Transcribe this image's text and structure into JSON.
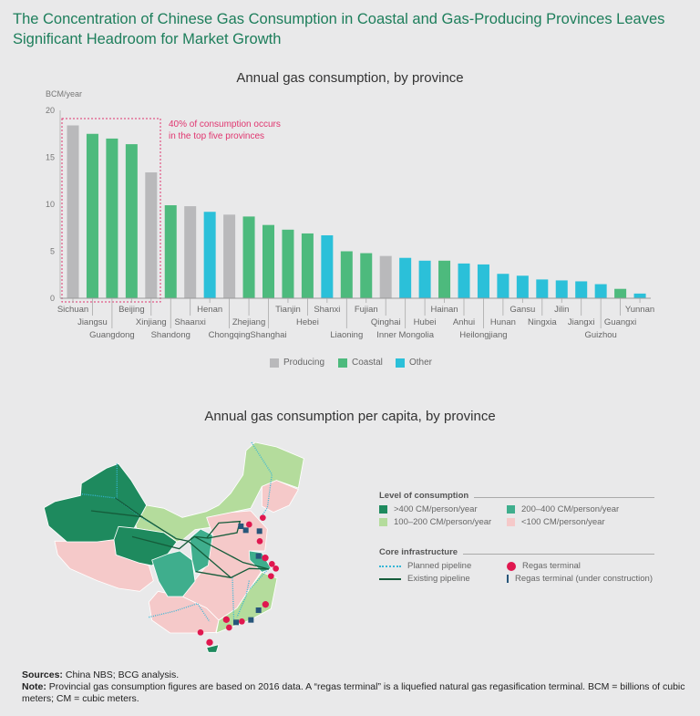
{
  "title": "The Concentration of Chinese Gas Consumption in Coastal and Gas-Producing Provinces Leaves Significant Headroom for Market Growth",
  "colors": {
    "Producing": "#b9b9bb",
    "Coastal": "#4dba7d",
    "Other": "#2bc0d9",
    "accent": "#e0356f",
    "title": "#1d7e5b"
  },
  "chart_data": {
    "type": "bar",
    "title": "Annual gas consumption, by province",
    "ylabel": "BCM/year",
    "xlabel": "",
    "ylim": [
      0,
      20
    ],
    "yticks": [
      "0",
      "5",
      "10",
      "15",
      "20"
    ],
    "grid": false,
    "legend": {
      "placement": "bottom-center",
      "entries": [
        "Producing",
        "Coastal",
        "Other"
      ]
    },
    "annotation": {
      "line1": "40% of consumption occurs",
      "line2": "in the top five provinces"
    },
    "categories": [
      "Sichuan",
      "Jiangsu",
      "Guangdong",
      "Beijing",
      "Xinjiang",
      "Shandong",
      "Shaanxi",
      "Henan",
      "Chongqing",
      "Zhejiang",
      "Shanghai",
      "Tianjin",
      "Hebei",
      "Shanxi",
      "Liaoning",
      "Fujian",
      "Qinghai",
      "Inner Mongolia",
      "Hubei",
      "Hainan",
      "Anhui",
      "Heilongjiang",
      "Hunan",
      "Gansu",
      "Ningxia",
      "Jilin",
      "Jiangxi",
      "Guizhou",
      "Guangxi",
      "Yunnan"
    ],
    "values": [
      18.4,
      17.5,
      17.0,
      16.4,
      13.4,
      9.9,
      9.8,
      9.2,
      8.9,
      8.7,
      7.8,
      7.3,
      6.9,
      6.7,
      5.0,
      4.8,
      4.5,
      4.3,
      4.0,
      4.0,
      3.7,
      3.6,
      2.6,
      2.4,
      2.0,
      1.9,
      1.8,
      1.5,
      1.0,
      0.5
    ],
    "groups": [
      "Producing",
      "Coastal",
      "Coastal",
      "Coastal",
      "Producing",
      "Coastal",
      "Producing",
      "Other",
      "Producing",
      "Coastal",
      "Coastal",
      "Coastal",
      "Coastal",
      "Other",
      "Coastal",
      "Coastal",
      "Producing",
      "Other",
      "Other",
      "Coastal",
      "Other",
      "Other",
      "Other",
      "Other",
      "Other",
      "Other",
      "Other",
      "Other",
      "Coastal",
      "Other"
    ]
  },
  "map": {
    "title": "Annual gas consumption per capita, by province",
    "consumption_heading": "Level of consumption",
    "consumption_levels": [
      {
        "label": ">400 CM/person/year",
        "color": "#1e8a5e"
      },
      {
        "label": "200–400 CM/person/year",
        "color": "#3fae8d"
      },
      {
        "label": "100–200 CM/person/year",
        "color": "#b4dc9c"
      },
      {
        "label": "<100 CM/person/year",
        "color": "#f5c9c9"
      }
    ],
    "infrastructure_heading": "Core infrastructure",
    "infrastructure": [
      {
        "label": "Planned pipeline",
        "color": "#36b6d6"
      },
      {
        "label": "Regas terminal",
        "color": "#e0174f"
      },
      {
        "label": "Existing pipeline",
        "color": "#155c3a"
      },
      {
        "label": "Regas terminal (under construction)",
        "color": "#27567a"
      }
    ]
  },
  "footer": {
    "sources_label": "Sources:",
    "sources": " China NBS; BCG analysis.",
    "note_label": "Note:",
    "note": " Provincial gas consumption figures are based on 2016 data. A “regas terminal” is a liquefied natural gas regasification terminal. BCM = billions of cubic meters; CM = cubic meters."
  }
}
